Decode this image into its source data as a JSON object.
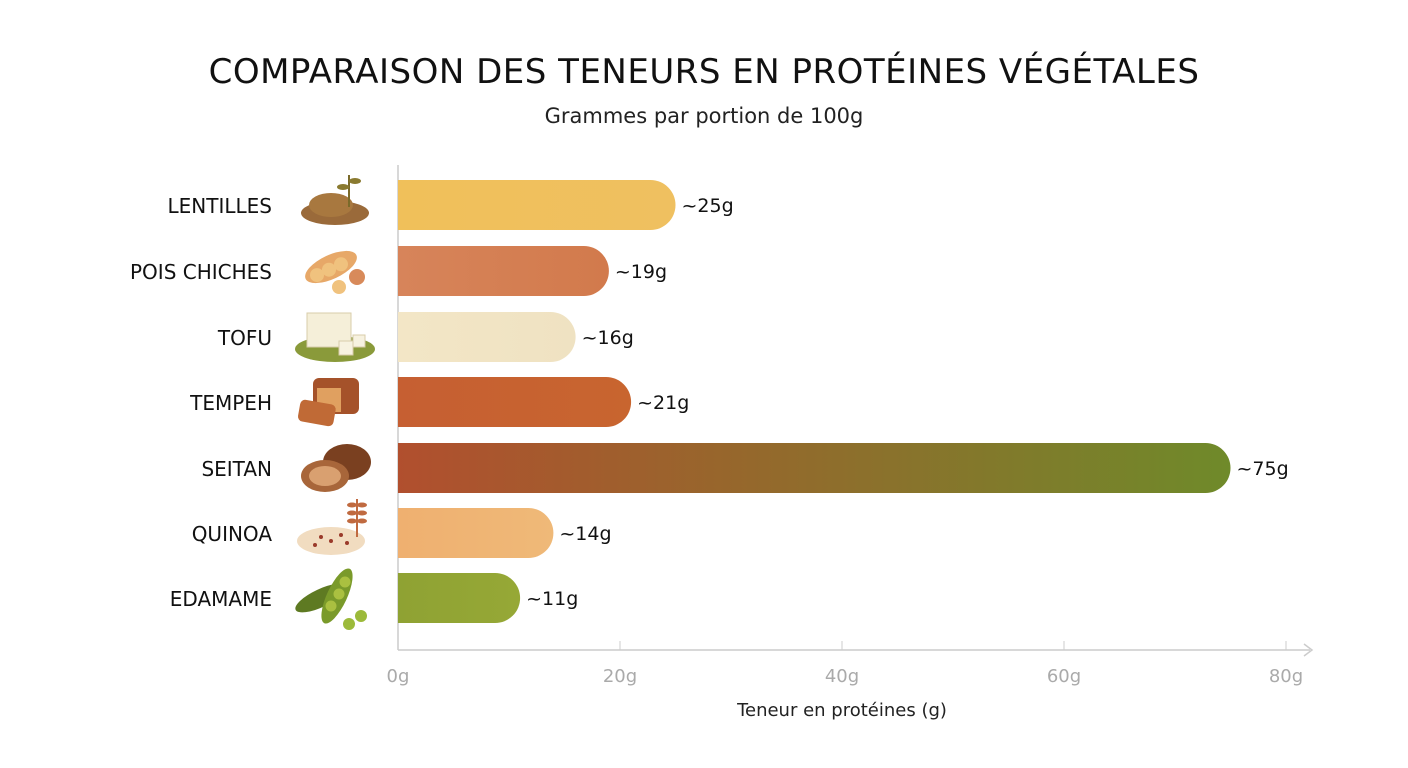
{
  "chart_data": {
    "type": "bar",
    "orientation": "horizontal",
    "title": "COMPARAISON DES TENEURS EN PROTÉINES VÉGÉTALES",
    "subtitle": "Grammes par portion de 100g",
    "xlabel": "Teneur en protéines (g)",
    "ylabel": "",
    "xlim": [
      0,
      80
    ],
    "xticks": [
      0,
      20,
      40,
      60,
      80
    ],
    "xtick_labels": [
      "0g",
      "20g",
      "40g",
      "60g",
      "80g"
    ],
    "grid": false,
    "categories": [
      "LENTILLES",
      "POIS CHICHES",
      "TOFU",
      "TEMPEH",
      "SEITAN",
      "QUINOA",
      "EDAMAME"
    ],
    "values": [
      25,
      19,
      16,
      21,
      75,
      14,
      11
    ],
    "data_labels": [
      "~25g",
      "~19g",
      "~16g",
      "~21g",
      "~75g",
      "~14g",
      "~11g"
    ],
    "icons": [
      "lentils-icon",
      "chickpeas-icon",
      "tofu-icon",
      "tempeh-icon",
      "seitan-icon",
      "quinoa-icon",
      "edamame-icon"
    ],
    "colors": [
      [
        "#f0c05a",
        "#efc060"
      ],
      [
        "#d7845a",
        "#d27a4c"
      ],
      [
        "#f3e6c6",
        "#efe2c2"
      ],
      [
        "#c65f32",
        "#c8652f"
      ],
      [
        "#b14f2e",
        "#6f8a2a"
      ],
      [
        "#efb070",
        "#efb978"
      ],
      [
        "#8fa233",
        "#96a836"
      ]
    ]
  }
}
